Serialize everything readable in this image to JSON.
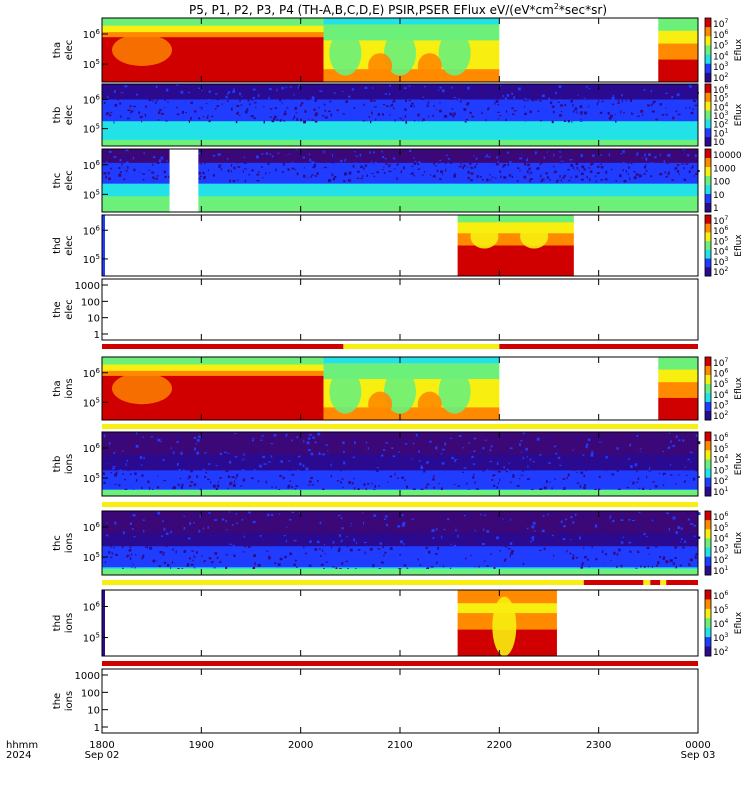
{
  "title": "P5, P1, P2, P3, P4 (TH-A,B,C,D,E) PSIR,PSER EFlux eV/(eV*cm",
  "title_sup": "2",
  "title_tail": "*sec*sr)",
  "time_axis": {
    "label1": "hhmm",
    "label2": "2024",
    "ticks": [
      {
        "hour": 0,
        "l1": "1800",
        "l2": "Sep 02"
      },
      {
        "hour": 1,
        "l1": "1900",
        "l2": ""
      },
      {
        "hour": 2,
        "l1": "2000",
        "l2": ""
      },
      {
        "hour": 3,
        "l1": "2100",
        "l2": ""
      },
      {
        "hour": 4,
        "l1": "2200",
        "l2": ""
      },
      {
        "hour": 5,
        "l1": "2300",
        "l2": ""
      },
      {
        "hour": 6,
        "l1": "0000",
        "l2": "Sep 03"
      }
    ]
  },
  "colors": {
    "red": "#d10000",
    "orange": "#ff8a00",
    "yellow": "#f8ee10",
    "green": "#6cf07a",
    "cyan": "#22e2e8",
    "blue": "#1f3cff",
    "navy": "#2a0a90",
    "purple": "#3c0878"
  },
  "chart_data": [
    {
      "type": "heatmap",
      "id": "tha_elec",
      "label1": "tha",
      "label2": "elec",
      "y_ticks": [
        "10",
        "10"
      ],
      "y_exps": [
        "6",
        "5"
      ],
      "colorbar_title": "Eflux",
      "colorbar_ticks": [
        "10",
        "10",
        "10",
        "10",
        "10",
        "10"
      ],
      "colorbar_exps": [
        "7",
        "6",
        "5",
        "4",
        "3",
        "2"
      ],
      "data_gaps_hours": [
        [
          4.0,
          5.6
        ]
      ]
    },
    {
      "type": "heatmap",
      "id": "thb_elec",
      "label1": "thb",
      "label2": "elec",
      "y_ticks": [
        "10",
        "10"
      ],
      "y_exps": [
        "6",
        "5"
      ],
      "colorbar_title": "Eflux",
      "colorbar_ticks": [
        "10",
        "10",
        "10",
        "10",
        "10",
        "10",
        "10"
      ],
      "colorbar_exps": [
        "6",
        "5",
        "4",
        "3",
        "2",
        "1",
        ""
      ]
    },
    {
      "type": "heatmap",
      "id": "thc_elec",
      "label1": "thc",
      "label2": "elec",
      "y_ticks": [
        "10",
        "10"
      ],
      "y_exps": [
        "6",
        "5"
      ],
      "colorbar_title": "",
      "colorbar_ticks": [
        "10000",
        "1000",
        "100",
        "10",
        "1"
      ],
      "colorbar_exps": [
        "",
        "",
        "",
        "",
        ""
      ],
      "data_gaps_hours": [
        [
          0.68,
          0.97
        ]
      ]
    },
    {
      "type": "heatmap",
      "id": "thd_elec",
      "label1": "thd",
      "label2": "elec",
      "y_ticks": [
        "10",
        "10"
      ],
      "y_exps": [
        "6",
        "5"
      ],
      "colorbar_title": "Eflux",
      "colorbar_ticks": [
        "10",
        "10",
        "10",
        "10",
        "10",
        "10"
      ],
      "colorbar_exps": [
        "7",
        "6",
        "5",
        "4",
        "3",
        "2"
      ],
      "data_hours": [
        [
          3.58,
          4.75
        ]
      ]
    },
    {
      "type": "line",
      "id": "the_elec",
      "label1": "the",
      "label2": "elec",
      "y_ticks": [
        "1000",
        "100",
        "10",
        "1"
      ],
      "y_scale": "log",
      "series": []
    },
    {
      "type": "heatmap",
      "id": "tha_ions",
      "label1": "tha",
      "label2": "ions",
      "y_ticks": [
        "10",
        "10"
      ],
      "y_exps": [
        "6",
        "5"
      ],
      "colorbar_title": "Eflux",
      "colorbar_ticks": [
        "10",
        "10",
        "10",
        "10",
        "10",
        "10"
      ],
      "colorbar_exps": [
        "7",
        "6",
        "5",
        "4",
        "3",
        "2"
      ],
      "data_gaps_hours": [
        [
          4.0,
          5.6
        ]
      ]
    },
    {
      "type": "heatmap",
      "id": "thb_ions",
      "label1": "thb",
      "label2": "ions",
      "y_ticks": [
        "10",
        "10"
      ],
      "y_exps": [
        "6",
        "5"
      ],
      "colorbar_title": "Eflux",
      "colorbar_ticks": [
        "10",
        "10",
        "10",
        "10",
        "10",
        "10"
      ],
      "colorbar_exps": [
        "6",
        "5",
        "4",
        "3",
        "2",
        "1"
      ]
    },
    {
      "type": "heatmap",
      "id": "thc_ions",
      "label1": "thc",
      "label2": "ions",
      "y_ticks": [
        "10",
        "10"
      ],
      "y_exps": [
        "6",
        "5"
      ],
      "colorbar_title": "Eflux",
      "colorbar_ticks": [
        "10",
        "10",
        "10",
        "10",
        "10",
        "10"
      ],
      "colorbar_exps": [
        "6",
        "5",
        "4",
        "3",
        "2",
        "1"
      ]
    },
    {
      "type": "heatmap",
      "id": "thd_ions",
      "label1": "thd",
      "label2": "ions",
      "y_ticks": [
        "10",
        "10"
      ],
      "y_exps": [
        "6",
        "5"
      ],
      "colorbar_title": "Eflux",
      "colorbar_ticks": [
        "10",
        "10",
        "10",
        "10",
        "10"
      ],
      "colorbar_exps": [
        "6",
        "5",
        "4",
        "3",
        "2"
      ],
      "data_hours": [
        [
          3.58,
          4.58
        ]
      ]
    },
    {
      "type": "line",
      "id": "the_ions",
      "label1": "the",
      "label2": "ions",
      "y_ticks": [
        "1000",
        "100",
        "10",
        "1"
      ],
      "y_scale": "log",
      "series": []
    }
  ]
}
